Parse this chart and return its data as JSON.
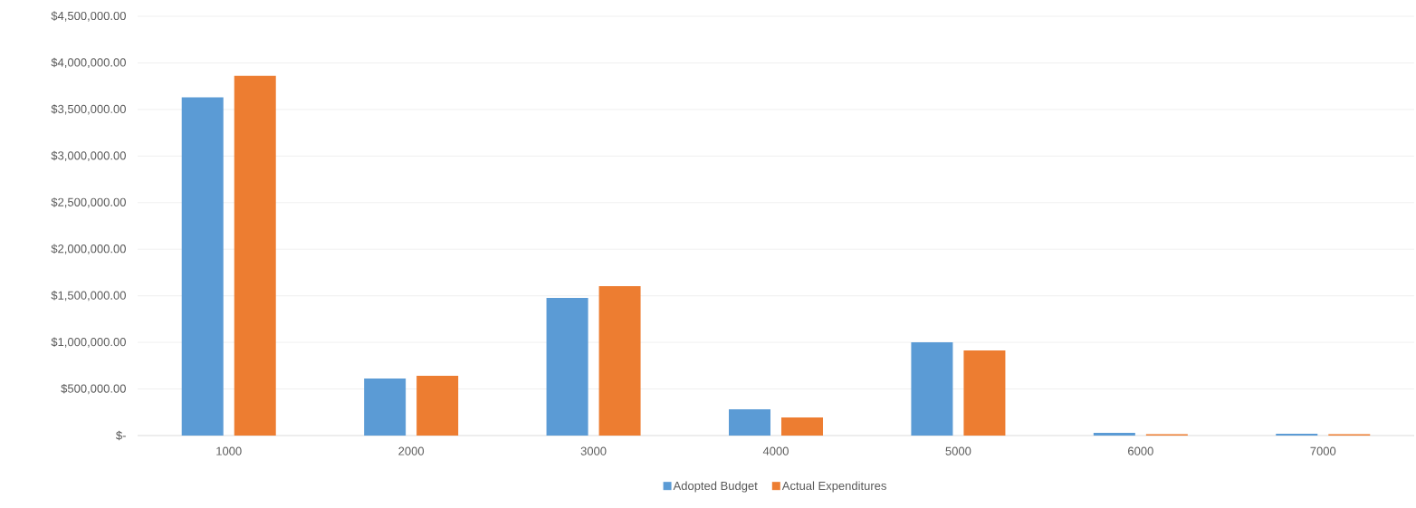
{
  "chart_data": {
    "type": "bar",
    "categories": [
      "1000",
      "2000",
      "3000",
      "4000",
      "5000",
      "6000",
      "7000"
    ],
    "series": [
      {
        "name": "Adopted Budget",
        "color": "#5b9bd5",
        "values": [
          3630000,
          612000,
          1477000,
          282000,
          1000000,
          30000,
          20000
        ]
      },
      {
        "name": "Actual Expenditures",
        "color": "#ed7d31",
        "values": [
          3860000,
          641000,
          1603000,
          194000,
          913000,
          15000,
          15000
        ]
      }
    ],
    "ylim": [
      0,
      4500000
    ],
    "yticks": [
      {
        "value": 0,
        "label": "$-"
      },
      {
        "value": 500000,
        "label": "$500,000.00"
      },
      {
        "value": 1000000,
        "label": "$1,000,000.00"
      },
      {
        "value": 1500000,
        "label": "$1,500,000.00"
      },
      {
        "value": 2000000,
        "label": "$2,000,000.00"
      },
      {
        "value": 2500000,
        "label": "$2,500,000.00"
      },
      {
        "value": 3000000,
        "label": "$3,000,000.00"
      },
      {
        "value": 3500000,
        "label": "$3,500,000.00"
      },
      {
        "value": 4000000,
        "label": "$4,000,000.00"
      },
      {
        "value": 4500000,
        "label": "$4,500,000.00"
      }
    ],
    "grid": "y",
    "legend": "bottom"
  }
}
